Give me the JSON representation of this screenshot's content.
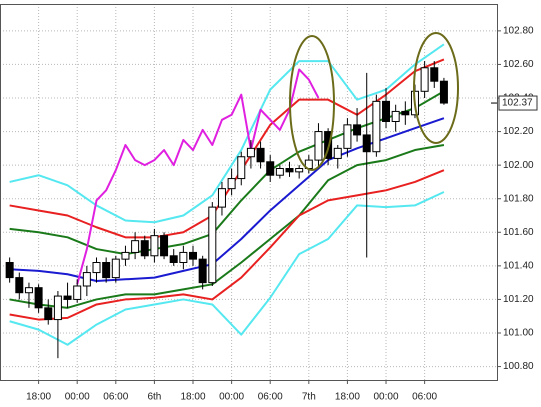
{
  "chart_data": {
    "type": "candlestick",
    "x": [
      0,
      1,
      2,
      3,
      4,
      5,
      6,
      7,
      8,
      9,
      10,
      11,
      12,
      13,
      14,
      15,
      16,
      17,
      18,
      19,
      20,
      21,
      22,
      23,
      24,
      25,
      26,
      27,
      28,
      29,
      30,
      31,
      32,
      33,
      34,
      35,
      36,
      37,
      38,
      39,
      40,
      41,
      42,
      43,
      44,
      45
    ],
    "open": [
      101.42,
      101.33,
      101.24,
      101.27,
      101.15,
      101.08,
      101.22,
      101.2,
      101.28,
      101.36,
      101.42,
      101.33,
      101.44,
      101.48,
      101.55,
      101.46,
      101.58,
      101.46,
      101.42,
      101.48,
      101.44,
      101.3,
      101.75,
      101.86,
      101.92,
      102.05,
      102.1,
      102.02,
      101.94,
      101.98,
      101.96,
      101.98,
      102.03,
      102.2,
      102.04,
      102.1,
      102.24,
      102.18,
      102.08,
      102.38,
      102.26,
      102.32,
      102.3,
      102.44,
      102.58,
      102.5
    ],
    "high": [
      101.45,
      101.36,
      101.3,
      101.29,
      101.2,
      101.25,
      101.3,
      101.32,
      101.4,
      101.45,
      101.45,
      101.46,
      101.52,
      101.6,
      101.58,
      101.62,
      101.6,
      101.5,
      101.52,
      101.52,
      101.46,
      101.78,
      101.9,
      101.98,
      102.08,
      102.15,
      102.14,
      102.06,
      102.0,
      102.02,
      102.0,
      102.06,
      102.25,
      102.22,
      102.12,
      102.28,
      102.34,
      102.55,
      102.42,
      102.46,
      102.36,
      102.38,
      102.48,
      102.62,
      102.62,
      102.52
    ],
    "low": [
      101.3,
      101.2,
      101.15,
      101.12,
      101.05,
      100.85,
      101.15,
      101.18,
      101.22,
      101.3,
      101.3,
      101.3,
      101.4,
      101.44,
      101.44,
      101.42,
      101.44,
      101.4,
      101.38,
      101.4,
      101.26,
      101.28,
      101.7,
      101.82,
      101.88,
      101.98,
      101.98,
      101.9,
      101.92,
      101.93,
      101.92,
      101.95,
      101.98,
      102.0,
      101.98,
      102.05,
      102.14,
      101.45,
      102.05,
      102.22,
      102.2,
      102.24,
      102.28,
      102.4,
      102.46,
      102.36
    ],
    "close": [
      101.33,
      101.24,
      101.27,
      101.15,
      101.08,
      101.22,
      101.2,
      101.28,
      101.36,
      101.42,
      101.33,
      101.44,
      101.48,
      101.55,
      101.46,
      101.58,
      101.46,
      101.42,
      101.48,
      101.44,
      101.3,
      101.75,
      101.86,
      101.92,
      102.05,
      102.1,
      102.02,
      101.94,
      101.98,
      101.96,
      101.98,
      102.03,
      102.2,
      102.04,
      102.1,
      102.24,
      102.18,
      102.08,
      102.38,
      102.26,
      102.32,
      102.3,
      102.44,
      102.58,
      102.5,
      102.37
    ],
    "up_color": "#ffffff",
    "down_color": "#000000",
    "overlays": [
      {
        "color": "#55e8f0",
        "x": [
          0,
          3,
          6,
          9,
          12,
          15,
          18,
          21,
          24,
          27,
          30,
          33,
          36,
          39,
          42,
          45
        ],
        "values": [
          101.9,
          101.94,
          101.88,
          101.76,
          101.67,
          101.66,
          101.7,
          101.82,
          102.09,
          102.45,
          102.62,
          102.62,
          102.39,
          102.45,
          102.6,
          102.72
        ]
      },
      {
        "color": "#e82020",
        "x": [
          0,
          3,
          6,
          9,
          12,
          15,
          18,
          21,
          24,
          27,
          30,
          33,
          36,
          39,
          42,
          45
        ],
        "values": [
          101.76,
          101.73,
          101.7,
          101.63,
          101.57,
          101.57,
          101.6,
          101.7,
          101.97,
          102.24,
          102.39,
          102.39,
          102.3,
          102.42,
          102.56,
          102.63
        ]
      },
      {
        "color": "#1a7a1a",
        "x": [
          0,
          3,
          6,
          9,
          12,
          15,
          18,
          21,
          24,
          27,
          30,
          33,
          36,
          39,
          42,
          45
        ],
        "values": [
          101.62,
          101.6,
          101.57,
          101.5,
          101.47,
          101.5,
          101.53,
          101.59,
          101.79,
          101.97,
          102.08,
          102.15,
          102.22,
          102.28,
          102.34,
          102.44
        ]
      },
      {
        "color": "#1a1ad0",
        "x": [
          0,
          3,
          6,
          9,
          12,
          15,
          18,
          21,
          24,
          27,
          30,
          33,
          36,
          39,
          42,
          45
        ],
        "values": [
          101.38,
          101.37,
          101.35,
          101.31,
          101.32,
          101.33,
          101.37,
          101.41,
          101.56,
          101.73,
          101.88,
          102.03,
          102.1,
          102.16,
          102.22,
          102.28
        ]
      },
      {
        "color": "#1a7a1a",
        "x": [
          0,
          3,
          6,
          9,
          12,
          15,
          18,
          21,
          24,
          27,
          30,
          33,
          36,
          39,
          42,
          45
        ],
        "values": [
          101.2,
          101.17,
          101.15,
          101.2,
          101.23,
          101.23,
          101.26,
          101.29,
          101.42,
          101.56,
          101.7,
          101.91,
          102.0,
          102.03,
          102.09,
          102.12
        ]
      },
      {
        "color": "#e82020",
        "x": [
          0,
          3,
          6,
          9,
          12,
          15,
          18,
          21,
          24,
          27,
          30,
          33,
          36,
          39,
          42,
          45
        ],
        "values": [
          101.11,
          101.08,
          101.09,
          101.17,
          101.2,
          101.21,
          101.23,
          101.2,
          101.33,
          101.51,
          101.7,
          101.79,
          101.82,
          101.85,
          101.9,
          101.97
        ]
      },
      {
        "color": "#55e8f0",
        "x": [
          0,
          3,
          6,
          9,
          12,
          15,
          18,
          21,
          24,
          27,
          30,
          33,
          36,
          39,
          42,
          45
        ],
        "values": [
          101.07,
          101.02,
          100.93,
          101.05,
          101.14,
          101.17,
          101.2,
          101.17,
          100.99,
          101.21,
          101.47,
          101.56,
          101.76,
          101.75,
          101.76,
          101.84
        ]
      },
      {
        "color": "#e020e0",
        "x": [
          7,
          8,
          9,
          10,
          11,
          12,
          13,
          14,
          15,
          16,
          17,
          18,
          19,
          20,
          21,
          22,
          23,
          24,
          25,
          26,
          27,
          28,
          29,
          30,
          31,
          32
        ],
        "values": [
          101.29,
          101.5,
          101.79,
          101.85,
          101.97,
          102.12,
          102.03,
          102.0,
          102.03,
          102.09,
          102.0,
          102.15,
          102.09,
          102.21,
          102.12,
          102.27,
          102.3,
          102.42,
          102.09,
          102.33,
          102.27,
          102.21,
          102.33,
          102.57,
          102.51,
          102.4
        ]
      }
    ],
    "xlim": [
      -1,
      50.5
    ],
    "ylim": [
      100.72,
      102.96
    ],
    "xticks": [
      {
        "value": 3,
        "label": "18:00"
      },
      {
        "value": 7,
        "label": "00:00"
      },
      {
        "value": 11,
        "label": "06:00"
      },
      {
        "value": 15,
        "label": "6th"
      },
      {
        "value": 19,
        "label": "18:00"
      },
      {
        "value": 23,
        "label": "00:00"
      },
      {
        "value": 27,
        "label": "06:00"
      },
      {
        "value": 31,
        "label": "7th"
      },
      {
        "value": 35,
        "label": "18:00"
      },
      {
        "value": 39,
        "label": "00:00"
      },
      {
        "value": 43,
        "label": "06:00"
      }
    ],
    "yticks": [
      {
        "value": 100.8,
        "label": "100.80"
      },
      {
        "value": 101.0,
        "label": "101.00"
      },
      {
        "value": 101.2,
        "label": "101.20"
      },
      {
        "value": 101.4,
        "label": "101.40"
      },
      {
        "value": 101.6,
        "label": "101.60"
      },
      {
        "value": 101.8,
        "label": "101.80"
      },
      {
        "value": 102.0,
        "label": "102.00"
      },
      {
        "value": 102.2,
        "label": "102.20"
      },
      {
        "value": 102.4,
        "label": "102.40"
      },
      {
        "value": 102.6,
        "label": "102.60"
      },
      {
        "value": 102.8,
        "label": "102.80"
      }
    ],
    "last_price": {
      "value": 102.37,
      "label": "102.37"
    },
    "grid": true
  }
}
